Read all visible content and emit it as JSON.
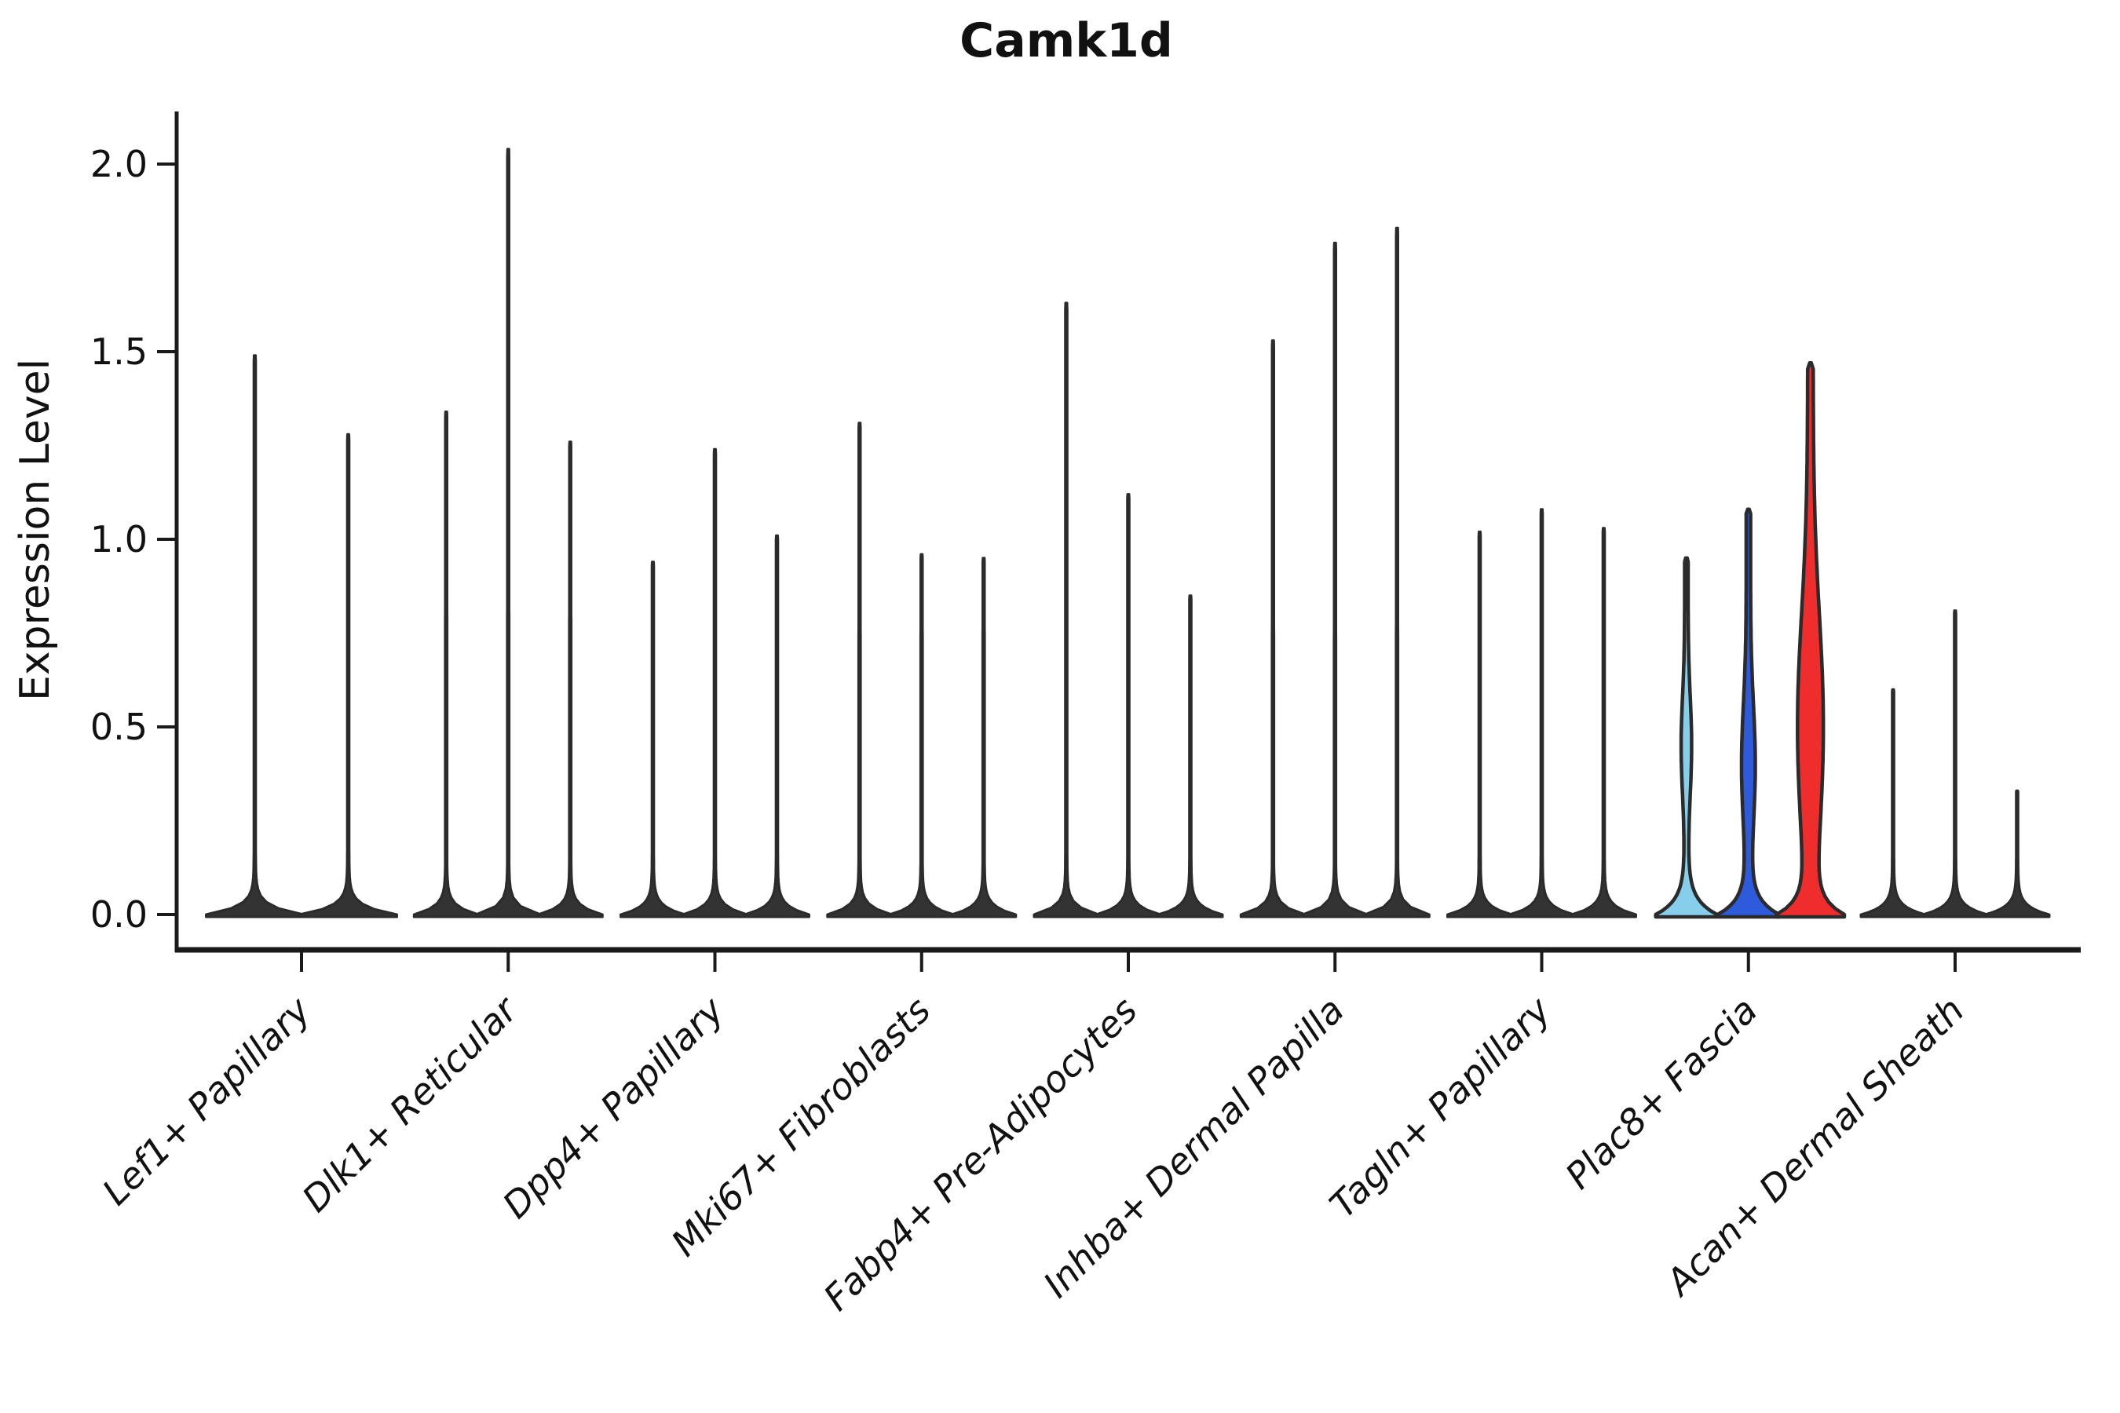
{
  "title": "Camk1d",
  "axes": {
    "ylabel": "Expression Level",
    "ytick_labels": [
      "0.0",
      "0.5",
      "1.0",
      "1.5",
      "2.0"
    ]
  },
  "chart_data": {
    "type": "violin",
    "title": "Camk1d",
    "xlabel": "",
    "ylabel": "Expression Level",
    "ylim": [
      0,
      2.14
    ],
    "yticks": [
      0.0,
      0.5,
      1.0,
      1.5,
      2.0
    ],
    "grid": false,
    "legend": "none",
    "description": "Grouped violin plot of Camk1d expression per fibroblast cluster; most violins are thin black spikes with wide flat bases at 0; the Plac8+ Fascia group is highlighted with light-blue, blue and red filled violins.",
    "colors": {
      "default_violin": "#333333",
      "outline": "#2b2b2b",
      "axis": "#1a1a1a",
      "highlight_palette": [
        "#87CEEB",
        "#2E5BDB",
        "#EF2D2D"
      ]
    },
    "groups": [
      {
        "label": "Lef1+ Papillary",
        "violins": [
          {
            "max": 1.49
          },
          {
            "max": 1.28
          }
        ]
      },
      {
        "label": "Dlk1+ Reticular",
        "violins": [
          {
            "max": 1.34
          },
          {
            "max": 2.04
          },
          {
            "max": 1.26
          }
        ]
      },
      {
        "label": "Dpp4+ Papillary",
        "violins": [
          {
            "max": 0.94
          },
          {
            "max": 1.24
          },
          {
            "max": 1.01
          }
        ]
      },
      {
        "label": "Mki67+ Fibroblasts",
        "violins": [
          {
            "max": 1.31
          },
          {
            "max": 0.96
          },
          {
            "max": 0.95
          }
        ]
      },
      {
        "label": "Fabp4+ Pre-Adipocytes",
        "violins": [
          {
            "max": 1.63
          },
          {
            "max": 1.12
          },
          {
            "max": 0.85
          }
        ]
      },
      {
        "label": "Inhba+ Dermal Papilla",
        "violins": [
          {
            "max": 1.53
          },
          {
            "max": 1.79
          },
          {
            "max": 1.83
          }
        ]
      },
      {
        "label": "Tagln+ Papillary",
        "violins": [
          {
            "max": 1.02
          },
          {
            "max": 1.08
          },
          {
            "max": 1.03
          }
        ]
      },
      {
        "label": "Plac8+ Fascia",
        "violins": [
          {
            "max": 0.95,
            "fill": "#87CEEB",
            "spike_hw": 2.2,
            "base_hw": 39,
            "flare": 25,
            "bulges": [
              {
                "v": 0.45,
                "hw": 4.5,
                "s": 0.13
              }
            ]
          },
          {
            "max": 1.08,
            "fill": "#2E5BDB",
            "spike_hw": 2.8,
            "base_hw": 39,
            "flare": 25,
            "bulges": [
              {
                "v": 0.4,
                "hw": 6.0,
                "s": 0.16
              }
            ]
          },
          {
            "max": 1.47,
            "fill": "#EF2D2D",
            "spike_hw": 3.5,
            "base_hw": 40,
            "flare": 25,
            "bulges": [
              {
                "v": 0.5,
                "hw": 13.0,
                "s": 0.3
              }
            ]
          }
        ]
      },
      {
        "label": "Acan+ Dermal Sheath",
        "violins": [
          {
            "max": 0.6
          },
          {
            "max": 0.81
          },
          {
            "max": 0.33
          }
        ]
      }
    ]
  }
}
